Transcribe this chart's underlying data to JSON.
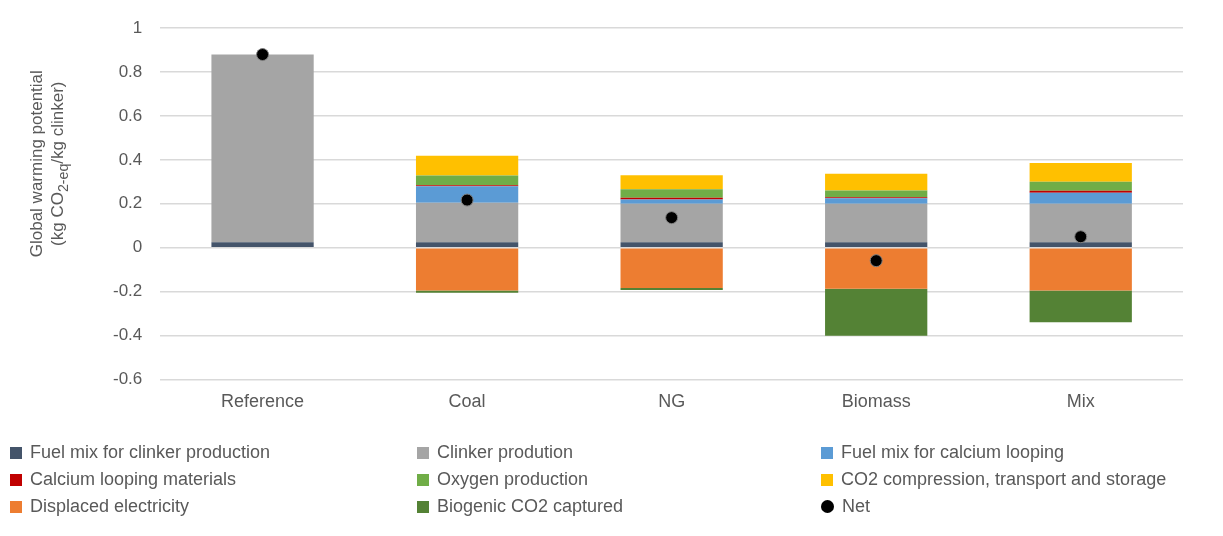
{
  "chart_data": {
    "type": "bar",
    "stacked": true,
    "ylabel": "Global warming potential\n(kg CO$_{2-eq}$/kg clinker)",
    "categories": [
      "Reference",
      "Coal",
      "NG",
      "Biomass",
      "Mix"
    ],
    "ylim": [
      -0.6,
      1
    ],
    "yticks": [
      -0.6,
      -0.4,
      -0.2,
      0,
      0.2,
      0.4,
      0.6,
      0.8,
      1
    ],
    "grid": "y",
    "legend": "bottom",
    "series": [
      {
        "name": "Fuel mix for clinker production",
        "color": "#44546a",
        "values": [
          0.025,
          0.025,
          0.025,
          0.025,
          0.025
        ]
      },
      {
        "name": "Clinker prodution",
        "color": "#a5a5a5",
        "values": [
          0.855,
          0.18,
          0.175,
          0.175,
          0.175
        ]
      },
      {
        "name": "Fuel mix for calcium looping",
        "color": "#5b9bd5",
        "values": [
          null,
          0.075,
          0.02,
          0.025,
          0.05
        ]
      },
      {
        "name": "Calcium looping materials",
        "color": "#c00000",
        "values": [
          null,
          0.005,
          0.008,
          0.005,
          0.009
        ]
      },
      {
        "name": "Oxygen production",
        "color": "#70ad47",
        "values": [
          null,
          0.044,
          0.038,
          0.031,
          0.041
        ]
      },
      {
        "name": "CO2 compression, transport and storage",
        "color": "#ffc000",
        "values": [
          null,
          0.09,
          0.064,
          0.076,
          0.086
        ]
      },
      {
        "name": "Displaced electricity",
        "color": "#ed7d31",
        "values": [
          null,
          -0.195,
          -0.184,
          -0.187,
          -0.195
        ]
      },
      {
        "name": "Biogenic CO2 captured",
        "color": "#548235",
        "values": [
          null,
          -0.01,
          -0.009,
          -0.214,
          -0.145
        ]
      },
      {
        "name": "Net",
        "type": "scatter",
        "marker": "circle",
        "color": "#000000",
        "x": [
          "Reference",
          "Coal",
          "NG",
          "Biomass",
          "Mix"
        ],
        "values": [
          0.88,
          0.217,
          0.137,
          -0.059,
          0.05
        ]
      }
    ]
  }
}
